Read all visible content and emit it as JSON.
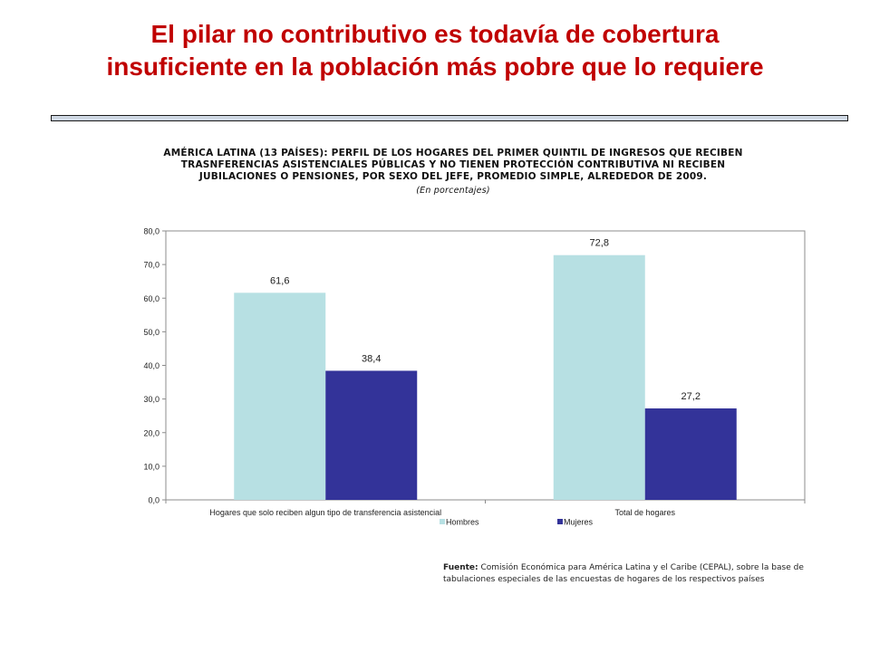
{
  "slide": {
    "title_line1": "El pilar no contributivo es todavía de cobertura",
    "title_line2": "insuficiente en la población más pobre que lo requiere"
  },
  "source": {
    "label": "Fuente:",
    "text": "Comisión Económica para América Latina y el Caribe (CEPAL), sobre la base de tabulaciones especiales de las encuestas de hogares de los respectivos países"
  },
  "colors": {
    "title": "#c00000",
    "hombres": "#b7e0e3",
    "mujeres": "#333399"
  },
  "chart_data": {
    "type": "bar",
    "title_lines": [
      "AMÉRICA LATINA (13 PAÍSES): PERFIL DE LOS HOGARES DEL PRIMER QUINTIL DE INGRESOS QUE RECIBEN",
      "TRASNFERENCIAS ASISTENCIALES PÚBLICAS Y NO TIENEN PROTECCIÓN CONTRIBUTIVA NI RECIBEN",
      "JUBILACIONES O PENSIONES, POR SEXO DEL JEFE, PROMEDIO SIMPLE, ALREDEDOR DE 2009."
    ],
    "subtitle": "(En porcentajes)",
    "categories": [
      "Hogares que solo reciben algun tipo de transferencia asistencial",
      "Total de hogares"
    ],
    "series": [
      {
        "name": "Hombres",
        "values": [
          61.6,
          72.8
        ],
        "labels": [
          "61,6",
          "72,8"
        ],
        "color": "#b7e0e3"
      },
      {
        "name": "Mujeres",
        "values": [
          38.4,
          27.2
        ],
        "labels": [
          "38,4",
          "27,2"
        ],
        "color": "#333399"
      }
    ],
    "ylim": [
      0,
      80
    ],
    "yticks": [
      0,
      10,
      20,
      30,
      40,
      50,
      60,
      70,
      80
    ],
    "ytick_labels": [
      "0,0",
      "10,0",
      "20,0",
      "30,0",
      "40,0",
      "50,0",
      "60,0",
      "70,0",
      "80,0"
    ],
    "legend_position": "bottom",
    "grid": false
  }
}
